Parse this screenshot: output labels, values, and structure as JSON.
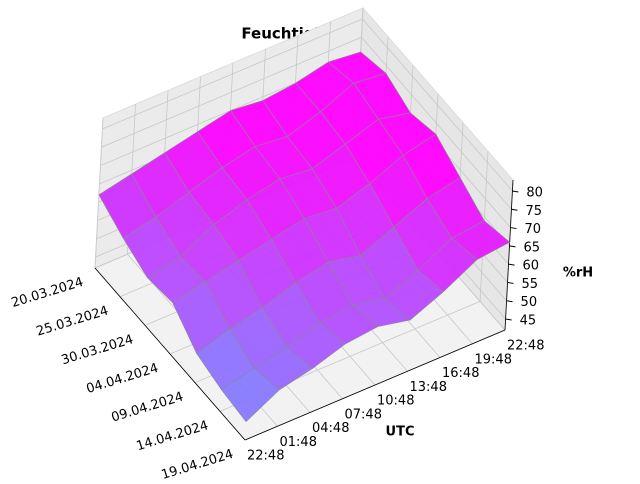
{
  "chart_data": {
    "type": "surface3d",
    "title": "Feuchtigkeit",
    "xlabel": "UTC",
    "zlabel": "%rH",
    "dates": [
      "20.03.2024",
      "25.03.2024",
      "30.03.2024",
      "04.04.2024",
      "09.04.2024",
      "14.04.2024",
      "19.04.2024"
    ],
    "times": [
      "22:48",
      "01:48",
      "04:48",
      "07:48",
      "10:48",
      "13:48",
      "16:48",
      "19:48",
      "22:48"
    ],
    "values": [
      [
        62,
        64,
        66,
        68,
        70,
        69,
        70,
        72,
        71
      ],
      [
        58,
        60,
        63,
        66,
        68,
        67,
        70,
        74,
        73
      ],
      [
        55,
        57,
        62,
        65,
        67,
        66,
        69,
        72,
        70
      ],
      [
        56,
        58,
        60,
        62,
        64,
        63,
        66,
        70,
        72
      ],
      [
        50,
        53,
        55,
        58,
        60,
        58,
        62,
        66,
        68
      ],
      [
        48,
        50,
        52,
        55,
        56,
        54,
        58,
        63,
        64
      ],
      [
        47,
        52,
        54,
        57,
        58,
        56,
        60,
        65,
        66
      ]
    ],
    "colormap": "cool",
    "zlim": [
      42,
      83
    ],
    "zticks": [
      45,
      50,
      55,
      60,
      65,
      70,
      75,
      80
    ],
    "grid": true
  }
}
